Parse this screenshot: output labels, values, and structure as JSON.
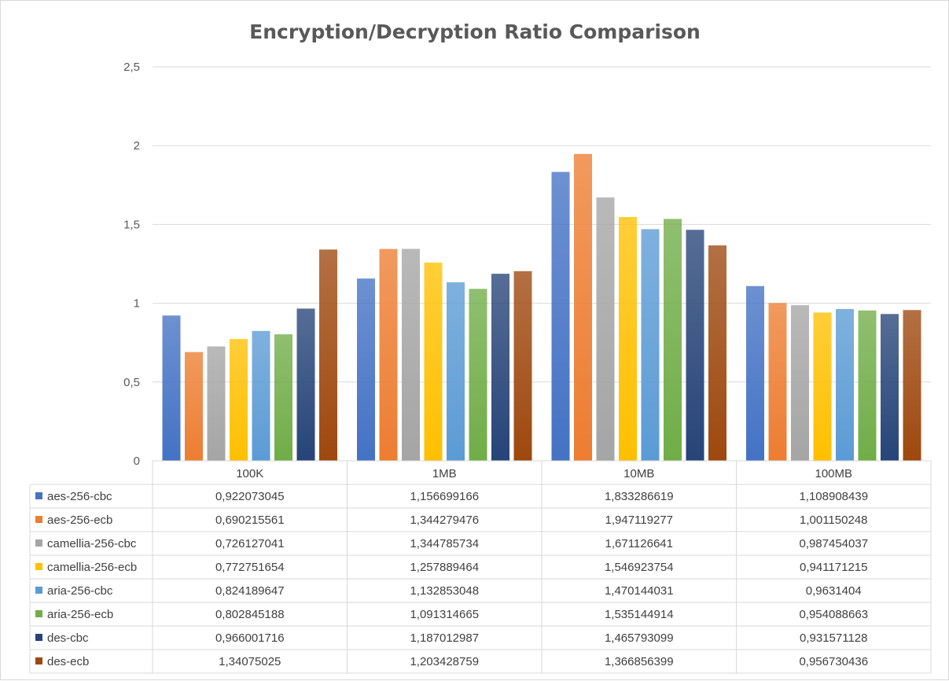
{
  "chart_data": {
    "type": "bar",
    "title": "Encryption/Decryption Ratio Comparison",
    "categories": [
      "100K",
      "1MB",
      "10MB",
      "100MB"
    ],
    "ylim": [
      0,
      2.5
    ],
    "yticks": [
      "0",
      "0,5",
      "1",
      "1,5",
      "2",
      "2,5"
    ],
    "grid": true,
    "legend": "data-table",
    "series": [
      {
        "name": "aes-256-cbc",
        "color": "#4472C4",
        "values": [
          0.922073045,
          1.156699166,
          1.833286619,
          1.108908439
        ],
        "labels": [
          "0,922073045",
          "1,156699166",
          "1,833286619",
          "1,108908439"
        ]
      },
      {
        "name": "aes-256-ecb",
        "color": "#ED7D31",
        "values": [
          0.690215561,
          1.344279476,
          1.947119277,
          1.001150248
        ],
        "labels": [
          "0,690215561",
          "1,344279476",
          "1,947119277",
          "1,001150248"
        ]
      },
      {
        "name": "camellia-256-cbc",
        "color": "#A5A5A5",
        "values": [
          0.726127041,
          1.344785734,
          1.671126641,
          0.987454037
        ],
        "labels": [
          "0,726127041",
          "1,344785734",
          "1,671126641",
          "0,987454037"
        ]
      },
      {
        "name": "camellia-256-ecb",
        "color": "#FFC000",
        "values": [
          0.772751654,
          1.257889464,
          1.546923754,
          0.941171215
        ],
        "labels": [
          "0,772751654",
          "1,257889464",
          "1,546923754",
          "0,941171215"
        ]
      },
      {
        "name": "aria-256-cbc",
        "color": "#5B9BD5",
        "values": [
          0.824189647,
          1.132853048,
          1.470144031,
          0.9631404
        ],
        "labels": [
          "0,824189647",
          "1,132853048",
          "1,470144031",
          "0,9631404"
        ]
      },
      {
        "name": "aria-256-ecb",
        "color": "#70AD47",
        "values": [
          0.802845188,
          1.091314665,
          1.535144914,
          0.954088663
        ],
        "labels": [
          "0,802845188",
          "1,091314665",
          "1,535144914",
          "0,954088663"
        ]
      },
      {
        "name": "des-cbc",
        "color": "#264478",
        "values": [
          0.966001716,
          1.187012987,
          1.465793099,
          0.931571128
        ],
        "labels": [
          "0,966001716",
          "1,187012987",
          "1,465793099",
          "0,931571128"
        ]
      },
      {
        "name": "des-ecb",
        "color": "#9E480E",
        "values": [
          1.34075025,
          1.203428759,
          1.366856399,
          0.956730436
        ],
        "labels": [
          "1,34075025",
          "1,203428759",
          "1,366856399",
          "0,956730436"
        ]
      }
    ]
  }
}
